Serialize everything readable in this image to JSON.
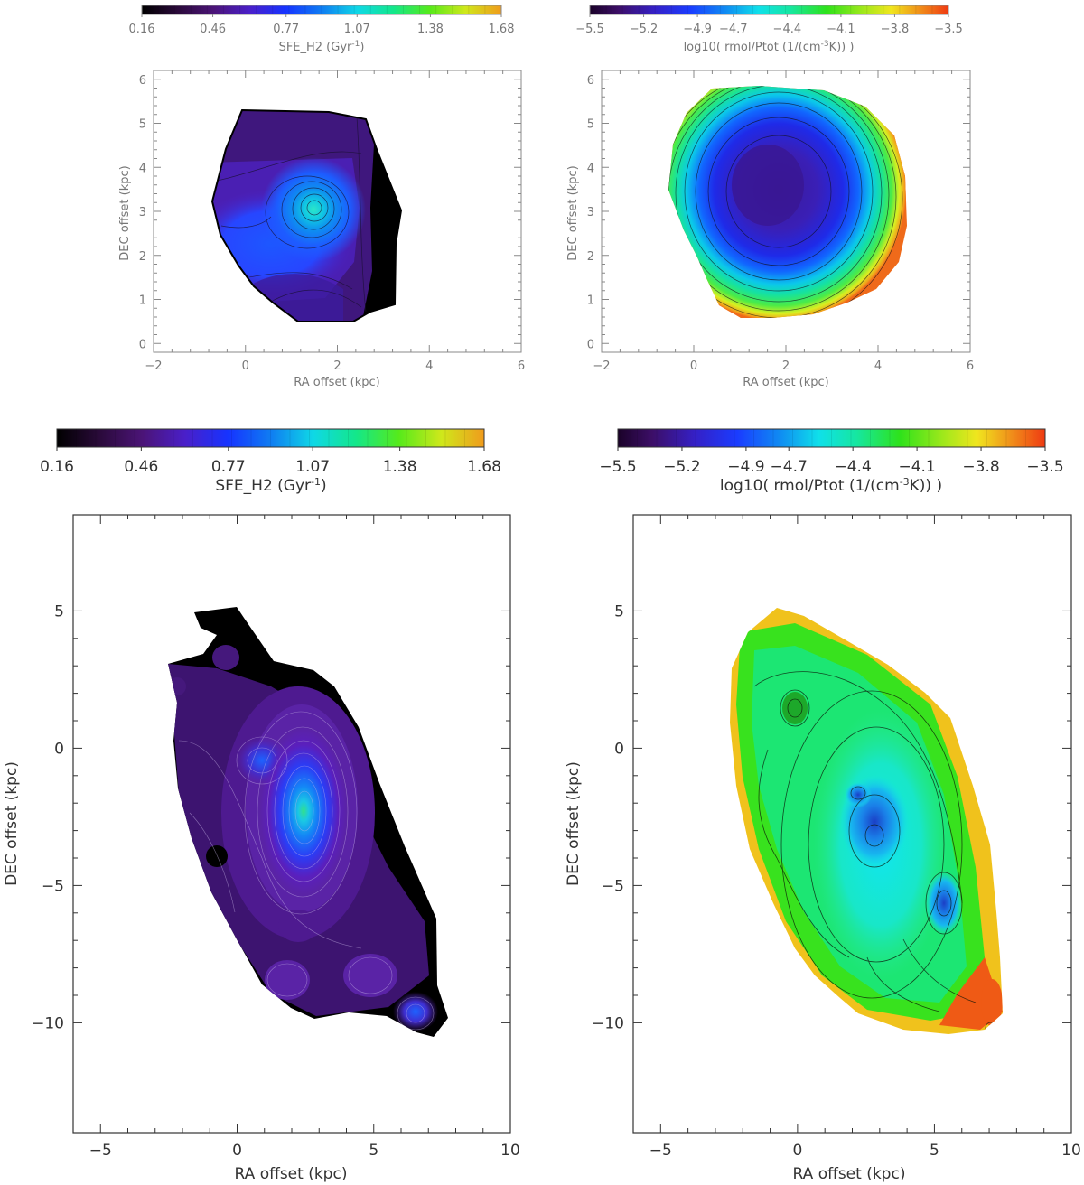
{
  "chart_data": [
    {
      "type": "heatmap",
      "panel": "top-left",
      "colorbar": {
        "label_text": "SFE_H2 (Gyr",
        "label_sup": "-1",
        "label_end": ")",
        "ticks": [
          "0.16",
          "0.46",
          "0.77",
          "1.07",
          "1.38",
          "1.68"
        ],
        "range": [
          0.16,
          1.68
        ],
        "scheme": "sfe"
      },
      "xlabel": "RA offset (kpc)",
      "ylabel": "DEC offset (kpc)",
      "xlim": [
        -2,
        6
      ],
      "ylim": [
        -0.2,
        6.2
      ],
      "xticks": [
        "-2",
        "0",
        "2",
        "4",
        "6"
      ],
      "yticks": [
        "0",
        "1",
        "2",
        "3",
        "4",
        "5",
        "6"
      ],
      "peak": {
        "x": 1.5,
        "y": 3.05,
        "value": 1.1
      }
    },
    {
      "type": "heatmap",
      "panel": "top-right",
      "colorbar": {
        "label_text": "log10( rmol/Ptot (1/(cm",
        "label_sup": "-3",
        "label_end": "K)) )",
        "ticks": [
          "-5.5",
          "-5.2",
          "-4.9",
          "-4.7",
          "-4.4",
          "-4.1",
          "-3.8",
          "-3.5"
        ],
        "range": [
          -5.5,
          -3.5
        ],
        "scheme": "rmol"
      },
      "xlabel": "RA offset (kpc)",
      "ylabel": "DEC offset (kpc)",
      "xlim": [
        -2,
        6
      ],
      "ylim": [
        -0.2,
        6.2
      ],
      "xticks": [
        "-2",
        "0",
        "2",
        "4",
        "6"
      ],
      "yticks": [
        "0",
        "1",
        "2",
        "3",
        "4",
        "5",
        "6"
      ],
      "minimum": {
        "x": 1.4,
        "y": 3.4,
        "value": -5.35
      }
    },
    {
      "type": "heatmap",
      "panel": "bottom-left",
      "colorbar": {
        "label_text": "SFE_H2 (Gyr",
        "label_sup": "-1",
        "label_end": ")",
        "ticks": [
          "0.16",
          "0.46",
          "0.77",
          "1.07",
          "1.38",
          "1.68"
        ],
        "range": [
          0.16,
          1.68
        ],
        "scheme": "sfe"
      },
      "xlabel": "RA offset (kpc)",
      "ylabel": "DEC offset (kpc)",
      "xlim": [
        -6,
        10
      ],
      "ylim": [
        -14,
        8.5
      ],
      "xticks": [
        "-5",
        "0",
        "5",
        "10"
      ],
      "yticks": [
        "5",
        "0",
        "-5",
        "-10"
      ],
      "peak": {
        "x": 2.5,
        "y": -2.5,
        "value": 1.07
      }
    },
    {
      "type": "heatmap",
      "panel": "bottom-right",
      "colorbar": {
        "label_text": "log10( rmol/Ptot (1/(cm",
        "label_sup": "-3",
        "label_end": "K)) )",
        "ticks": [
          "-5.5",
          "-5.2",
          "-4.9",
          "-4.7",
          "-4.4",
          "-4.1",
          "-3.8",
          "-3.5"
        ],
        "range": [
          -5.5,
          -3.5
        ],
        "scheme": "rmol"
      },
      "xlabel": "RA offset (kpc)",
      "ylabel": "DEC offset (kpc)",
      "xlim": [
        -6,
        10
      ],
      "ylim": [
        -14,
        8.5
      ],
      "xticks": [
        "-5",
        "0",
        "5",
        "10"
      ],
      "yticks": [
        "5",
        "0",
        "-5",
        "-10"
      ],
      "minimum": {
        "x": 3.0,
        "y": -3.2,
        "value": -5.0
      }
    }
  ]
}
